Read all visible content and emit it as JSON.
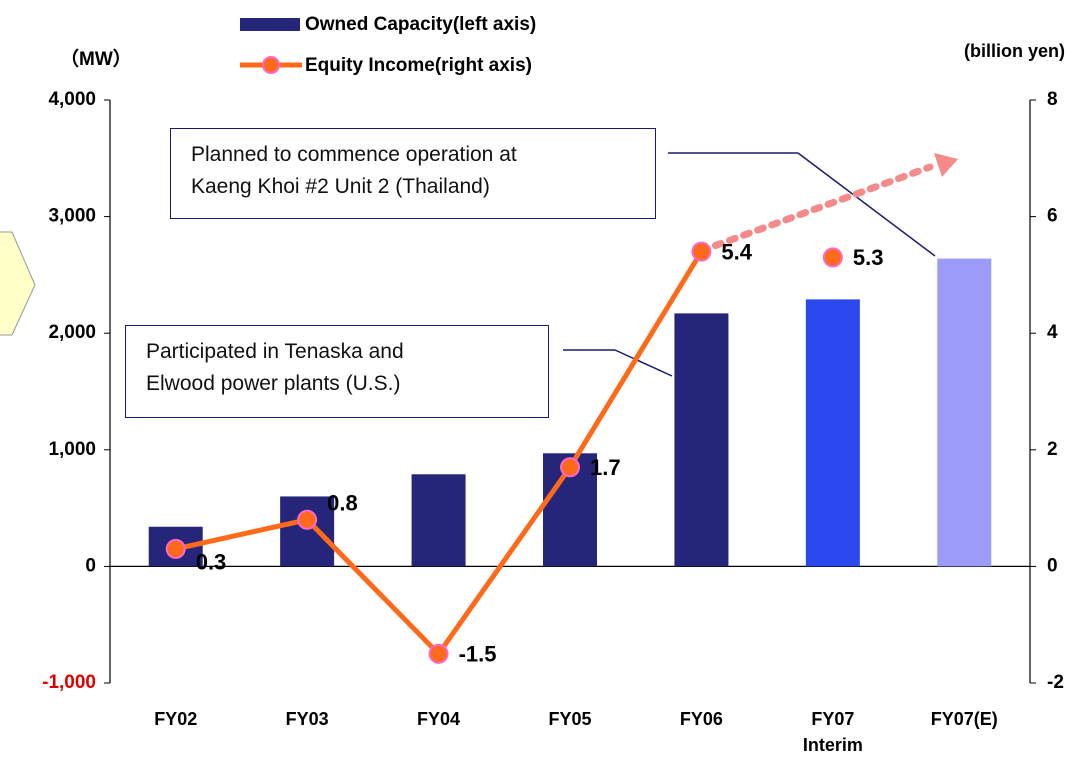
{
  "chart_data": {
    "type": "bar_line",
    "categories": [
      "FY02",
      "FY03",
      "FY04",
      "FY05",
      "FY06",
      "FY07\nInterim",
      "FY07(E)"
    ],
    "series": [
      {
        "name": "Owned Capacity(left axis)",
        "type": "bar",
        "axis": "y",
        "colors": [
          "#25257a",
          "#25257a",
          "#25257a",
          "#25257a",
          "#25257a",
          "#2a48ee",
          "#9c9cf8"
        ],
        "values": [
          340,
          600,
          790,
          970,
          2170,
          2290,
          2640
        ]
      },
      {
        "name": "Equity Income(right axis)",
        "type": "line",
        "axis": "y2",
        "color": "#ff6a1a",
        "marker_color": "#ff66cc",
        "values": [
          0.3,
          0.8,
          -1.5,
          1.7,
          5.4,
          5.3,
          null
        ],
        "line_breaks_before": [
          5
        ]
      }
    ],
    "ylabel": "（MW）",
    "y2label": "(billion yen)",
    "ylim": [
      -1000,
      4000
    ],
    "yticks": [
      {
        "value": -1000,
        "label": "-1,000"
      },
      0,
      {
        "value": 1000,
        "label": "1,000"
      },
      {
        "value": 2000,
        "label": "2,000"
      },
      {
        "value": 3000,
        "label": "3,000"
      },
      {
        "value": 4000,
        "label": "4,000"
      }
    ],
    "negative_tick_color": "#e00000",
    "y2lim": [
      -2,
      8
    ],
    "y2ticks": [
      -2,
      0,
      2,
      4,
      6,
      8
    ],
    "annotations": [
      "Planned to commence operation at\nKaeng Khoi #2 Unit 2 (Thailand)",
      "Participated in Tenaska and\nElwood power plants (U.S.)"
    ]
  }
}
